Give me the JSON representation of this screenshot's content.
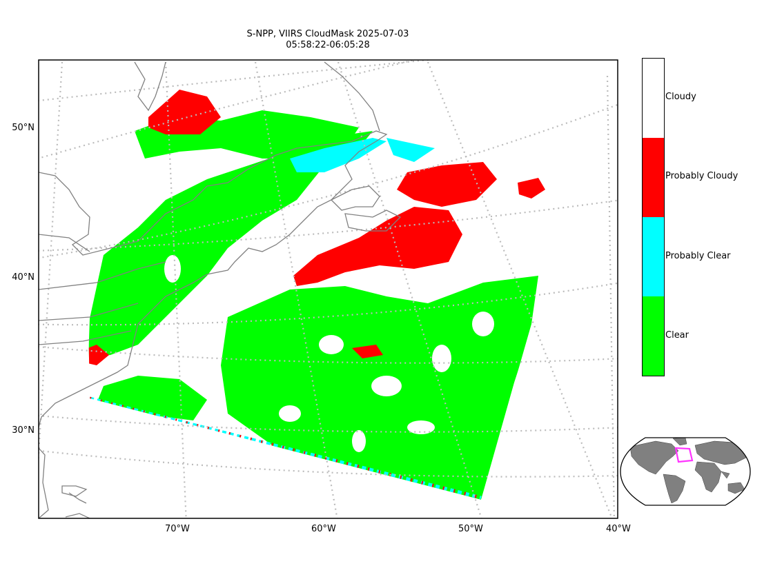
{
  "title": {
    "line1": "S-NPP, VIIRS CloudMask 2025-07-03",
    "line2": "05:58:22-06:05:28"
  },
  "axes": {
    "lon_labels": [
      "70°W",
      "60°W",
      "50°W",
      "40°W"
    ],
    "lat_labels": [
      "50°N",
      "40°N",
      "30°N"
    ]
  },
  "legend": {
    "items": [
      {
        "label": "Cloudy",
        "color": "#ffffff"
      },
      {
        "label": "Probably Cloudy",
        "color": "#ff0000"
      },
      {
        "label": "Probably Clear",
        "color": "#00ffff"
      },
      {
        "label": "Clear",
        "color": "#00ff00"
      }
    ]
  },
  "colors": {
    "coastline": "#808080",
    "graticule": "#bbbbbb",
    "inset_land": "#808080",
    "inset_box": "#ff33ff"
  }
}
